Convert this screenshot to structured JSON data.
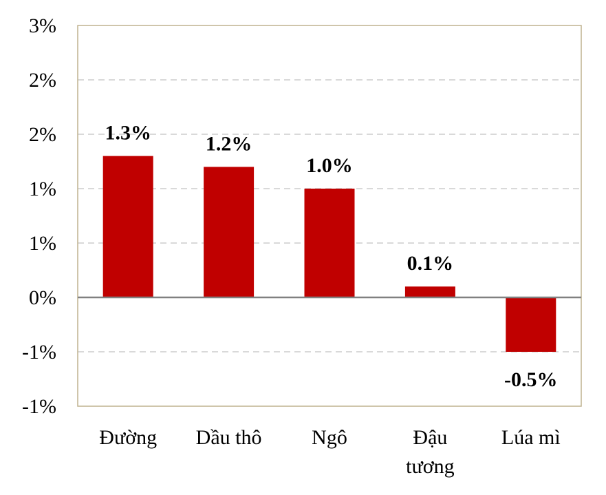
{
  "chart_data": {
    "type": "bar",
    "categories": [
      [
        "Đường"
      ],
      [
        "Dầu thô"
      ],
      [
        "Ngô"
      ],
      [
        "Đậu",
        "tương"
      ],
      [
        "Lúa mì"
      ]
    ],
    "values": [
      1.3,
      1.2,
      1.0,
      0.1,
      -0.5
    ],
    "data_labels": [
      "1.3%",
      "1.2%",
      "1.0%",
      "0.1%",
      "-0.5%"
    ],
    "ylim": [
      -1.0,
      2.5
    ],
    "yticks": [
      {
        "value": 2.5,
        "label": "3%"
      },
      {
        "value": 2.0,
        "label": "2%"
      },
      {
        "value": 1.5,
        "label": "2%"
      },
      {
        "value": 1.0,
        "label": "1%"
      },
      {
        "value": 0.5,
        "label": "1%"
      },
      {
        "value": 0.0,
        "label": "0%"
      },
      {
        "value": -0.5,
        "label": "-1%"
      },
      {
        "value": -1.0,
        "label": "-1%"
      }
    ],
    "title": "",
    "xlabel": "",
    "ylabel": "",
    "grid": true,
    "legend": "none",
    "colors": {
      "bar": "#c00000",
      "grid": "#d9d9d9",
      "axis": "#808080",
      "frame": "#bfb28f"
    }
  }
}
